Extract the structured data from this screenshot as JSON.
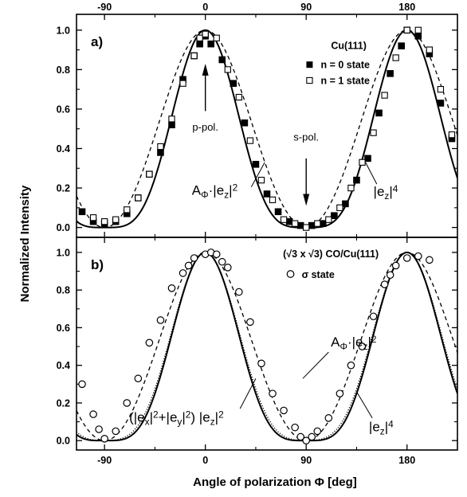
{
  "chart_data": [
    {
      "type": "scatter",
      "panel_label": "a)",
      "xlabel": "Angle of polarization Φ  [deg]",
      "ylabel": "Normalized Intensity",
      "xlim": [
        -115,
        225
      ],
      "ylim": [
        -0.05,
        1.08
      ],
      "xticks": [
        -90,
        0,
        90,
        180
      ],
      "yticks": [
        "0.0",
        "0.2",
        "0.4",
        "0.6",
        "0.8",
        "1.0"
      ],
      "top_xticks": [
        "-90",
        "0",
        "90",
        "180"
      ],
      "legend_title": "Cu(111)",
      "legend_placement": "top-right",
      "series": [
        {
          "name": "n = 0 state",
          "marker": "filled-square",
          "points": [
            [
              -110,
              0.08
            ],
            [
              -100,
              0.03
            ],
            [
              -90,
              0.02
            ],
            [
              -80,
              0.03
            ],
            [
              -70,
              0.07
            ],
            [
              -60,
              0.15
            ],
            [
              -50,
              0.27
            ],
            [
              -40,
              0.38
            ],
            [
              -30,
              0.52
            ],
            [
              -20,
              0.75
            ],
            [
              -10,
              0.87
            ],
            [
              -5,
              0.93
            ],
            [
              0,
              0.97
            ],
            [
              5,
              0.93
            ],
            [
              15,
              0.85
            ],
            [
              25,
              0.73
            ],
            [
              35,
              0.53
            ],
            [
              45,
              0.32
            ],
            [
              55,
              0.17
            ],
            [
              65,
              0.08
            ],
            [
              75,
              0.03
            ],
            [
              85,
              0.01
            ],
            [
              95,
              0.01
            ],
            [
              105,
              0.02
            ],
            [
              115,
              0.06
            ],
            [
              125,
              0.12
            ],
            [
              135,
              0.24
            ],
            [
              145,
              0.35
            ],
            [
              155,
              0.58
            ],
            [
              165,
              0.78
            ],
            [
              175,
              0.92
            ],
            [
              180,
              1.0
            ],
            [
              190,
              0.97
            ],
            [
              200,
              0.88
            ],
            [
              210,
              0.63
            ],
            [
              220,
              0.45
            ]
          ]
        },
        {
          "name": "n = 1 state",
          "marker": "open-square",
          "points": [
            [
              -100,
              0.05
            ],
            [
              -90,
              0.03
            ],
            [
              -80,
              0.04
            ],
            [
              -70,
              0.09
            ],
            [
              -60,
              0.15
            ],
            [
              -50,
              0.27
            ],
            [
              -40,
              0.41
            ],
            [
              -30,
              0.55
            ],
            [
              -20,
              0.73
            ],
            [
              -10,
              0.87
            ],
            [
              -5,
              0.96
            ],
            [
              0,
              0.98
            ],
            [
              10,
              0.96
            ],
            [
              20,
              0.8
            ],
            [
              30,
              0.66
            ],
            [
              40,
              0.44
            ],
            [
              50,
              0.24
            ],
            [
              60,
              0.14
            ],
            [
              70,
              0.04
            ],
            [
              80,
              0.02
            ],
            [
              90,
              0.0
            ],
            [
              100,
              0.02
            ],
            [
              110,
              0.04
            ],
            [
              120,
              0.1
            ],
            [
              130,
              0.2
            ],
            [
              140,
              0.33
            ],
            [
              150,
              0.48
            ],
            [
              160,
              0.67
            ],
            [
              170,
              0.86
            ],
            [
              180,
              1.0
            ],
            [
              190,
              1.0
            ],
            [
              200,
              0.9
            ],
            [
              210,
              0.7
            ],
            [
              220,
              0.47
            ]
          ]
        }
      ],
      "curves": [
        {
          "label": "A_Φ·|e_z|²",
          "style": "dashed",
          "model": "apol"
        },
        {
          "label": "|e_z|⁴",
          "style": "solid",
          "model": "ez4"
        }
      ],
      "annotations": {
        "p_pol": "p-pol.",
        "s_pol": "s-pol.",
        "curve_dashed_label": {
          "main": "A",
          "sub": "Φ",
          "after": "·|e",
          "sub2": "z",
          "after2": "|",
          "sup": "2"
        },
        "curve_solid_label": {
          "main": "|e",
          "sub": "z",
          "after": "|",
          "sup": "4"
        }
      }
    },
    {
      "type": "scatter",
      "panel_label": "b)",
      "xlim": [
        -115,
        225
      ],
      "ylim": [
        -0.05,
        1.08
      ],
      "xticks": [
        -90,
        0,
        90,
        180
      ],
      "xtick_labels": [
        "-90",
        "0",
        "90",
        "180"
      ],
      "yticks": [
        "0.0",
        "0.2",
        "0.4",
        "0.6",
        "0.8",
        "1.0"
      ],
      "legend_title": "(√3 x √3) CO/Cu(111)",
      "legend_placement": "top-right",
      "series": [
        {
          "name": "σ state",
          "marker": "open-circle",
          "points": [
            [
              -110,
              0.3
            ],
            [
              -100,
              0.14
            ],
            [
              -95,
              0.06
            ],
            [
              -90,
              0.01
            ],
            [
              -80,
              0.05
            ],
            [
              -70,
              0.2
            ],
            [
              -60,
              0.33
            ],
            [
              -50,
              0.52
            ],
            [
              -40,
              0.64
            ],
            [
              -30,
              0.81
            ],
            [
              -20,
              0.89
            ],
            [
              -15,
              0.93
            ],
            [
              -10,
              0.97
            ],
            [
              0,
              0.99
            ],
            [
              5,
              1.0
            ],
            [
              10,
              0.99
            ],
            [
              15,
              0.95
            ],
            [
              20,
              0.92
            ],
            [
              30,
              0.79
            ],
            [
              40,
              0.63
            ],
            [
              50,
              0.41
            ],
            [
              60,
              0.25
            ],
            [
              70,
              0.16
            ],
            [
              80,
              0.07
            ],
            [
              85,
              0.02
            ],
            [
              90,
              0.0
            ],
            [
              95,
              0.02
            ],
            [
              100,
              0.05
            ],
            [
              110,
              0.12
            ],
            [
              120,
              0.25
            ],
            [
              130,
              0.4
            ],
            [
              140,
              0.5
            ],
            [
              150,
              0.66
            ],
            [
              160,
              0.83
            ],
            [
              165,
              0.88
            ],
            [
              170,
              0.93
            ],
            [
              180,
              0.97
            ],
            [
              190,
              0.98
            ],
            [
              200,
              0.96
            ]
          ]
        }
      ],
      "curves": [
        {
          "label": "A_Φ·|e_z|²",
          "style": "dashed",
          "model": "apol"
        },
        {
          "label": "(|e_x|²+|e_y|²)|e_z|²",
          "style": "dotted",
          "model": "exy"
        },
        {
          "label": "|e_z|⁴",
          "style": "solid",
          "model": "ez4"
        }
      ],
      "annotations": {
        "curve_dashed_label": {
          "main": "A",
          "sub": "Φ",
          "after": "·|e",
          "sub2": "z",
          "after2": "|",
          "sup": "2"
        },
        "curve_dotted_label": {
          "p1": "(|e",
          "s1": "x",
          "p2": "|",
          "u1": "2",
          "p3": "+|e",
          "s2": "y",
          "p4": "|",
          "u2": "2",
          "p5": ") |e",
          "s3": "z",
          "p6": "|",
          "u3": "2"
        },
        "curve_solid_label": {
          "main": "|e",
          "sub": "z",
          "after": "|",
          "sup": "4"
        }
      }
    }
  ],
  "colors": {
    "axis": "#000000",
    "background": "#ffffff",
    "marker": "#000000"
  }
}
